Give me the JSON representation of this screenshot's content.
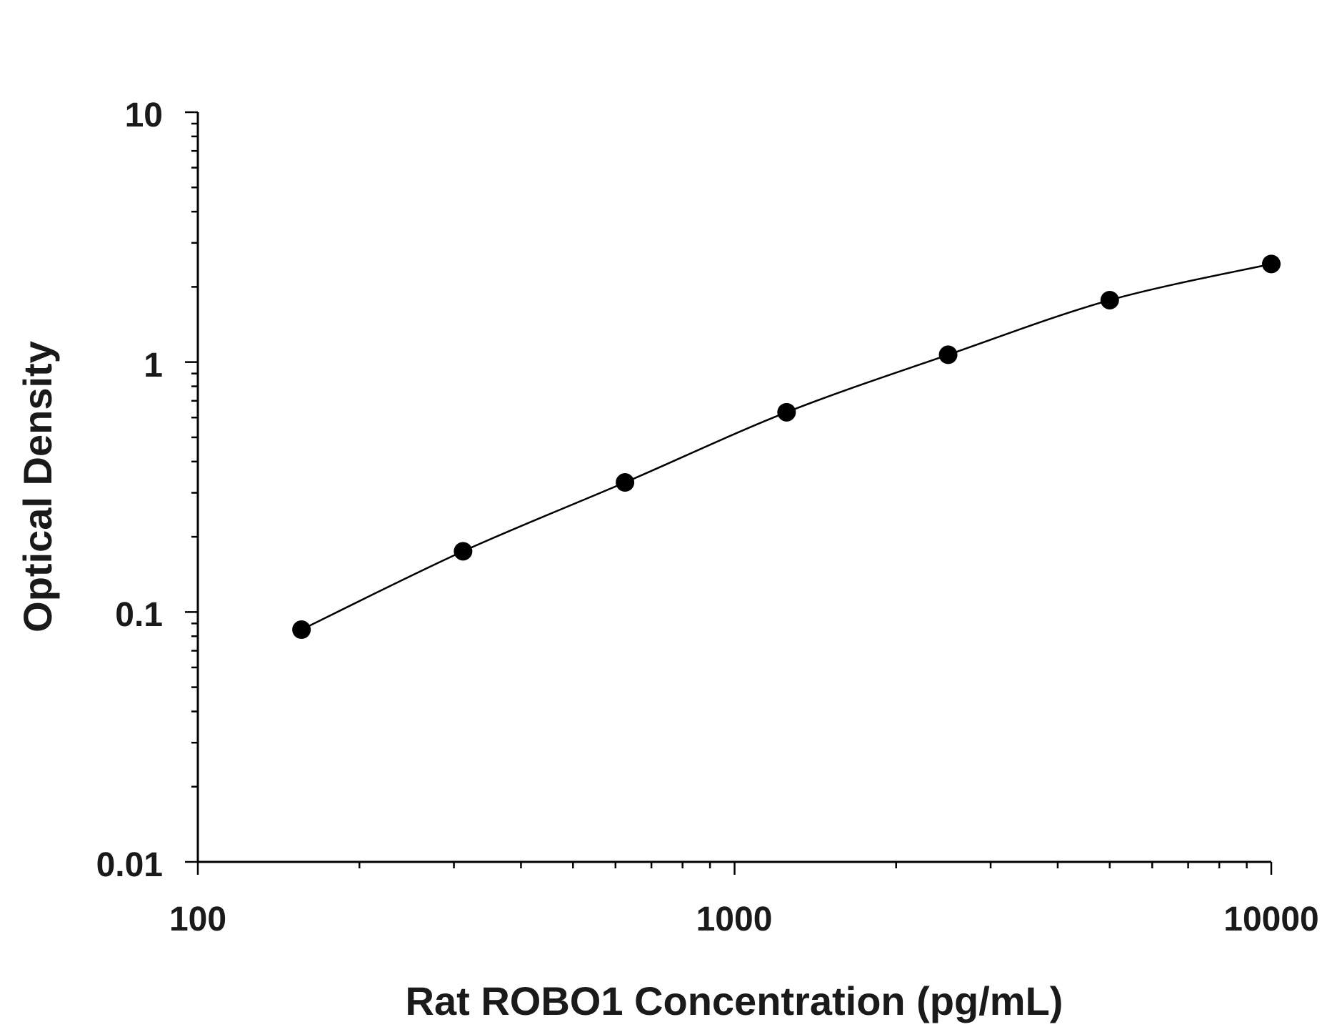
{
  "chart_data": {
    "type": "scatter",
    "xlabel": "Rat ROBO1 Concentration (pg/mL)",
    "ylabel": "Optical Density",
    "xscale": "log",
    "yscale": "log",
    "xlim": [
      100,
      10000
    ],
    "ylim": [
      0.01,
      10
    ],
    "x_ticks": [
      "100",
      "1000",
      "10000"
    ],
    "y_ticks": [
      "0.01",
      "0.1",
      "1",
      "10"
    ],
    "grid": false,
    "legend": "none",
    "marker_color": "#000000",
    "line_color": "#000000",
    "series": [
      {
        "x": [
          156,
          312,
          625,
          1250,
          2500,
          5000,
          10000
        ],
        "y": [
          0.085,
          0.175,
          0.33,
          0.63,
          1.07,
          1.77,
          2.47
        ],
        "fit_line": true
      }
    ]
  }
}
